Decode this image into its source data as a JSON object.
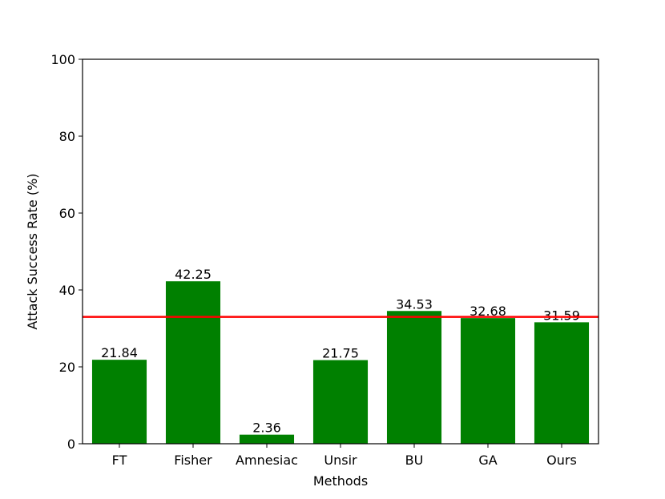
{
  "chart_data": {
    "type": "bar",
    "x_label": "Methods",
    "y_label": "Attack Success Rate (%)",
    "categories": [
      "FT",
      "Fisher",
      "Amnesiac",
      "Unsir",
      "BU",
      "GA",
      "Ours"
    ],
    "values": [
      21.84,
      42.25,
      2.36,
      21.75,
      34.53,
      32.68,
      31.59
    ],
    "color": "#008000",
    "reference_line": {
      "value": 33,
      "color": "#ff0000"
    },
    "ylim": [
      0,
      100
    ],
    "yticks": [
      0,
      20,
      40,
      60,
      80,
      100
    ],
    "grid": false
  }
}
